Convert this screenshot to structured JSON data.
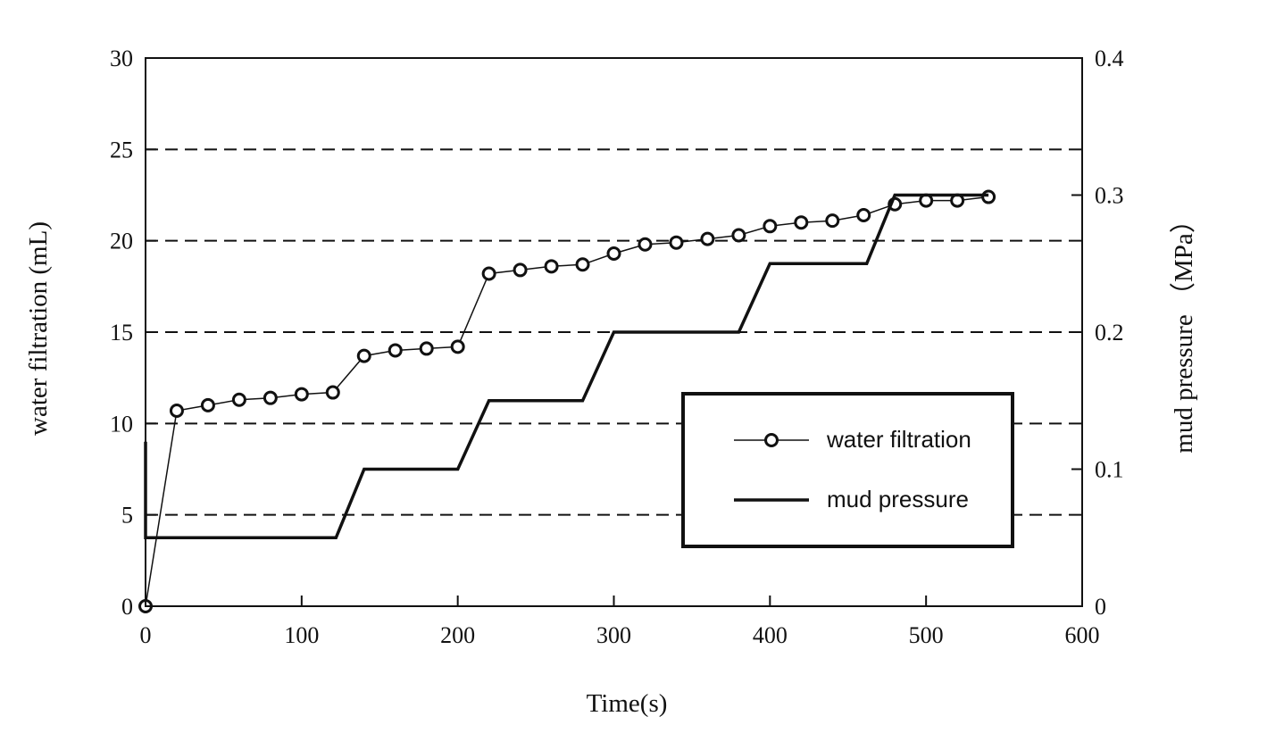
{
  "chart_data": {
    "type": "line",
    "title": "",
    "xlabel": "Time(s)",
    "ylabel": "water filtration (mL)",
    "y2label": "mud pressure （MPa）",
    "xlim": [
      0,
      600
    ],
    "ylim": [
      0,
      30
    ],
    "y2lim": [
      0,
      0.4
    ],
    "xticks": [
      0,
      100,
      200,
      300,
      400,
      500,
      600
    ],
    "yticks": [
      0,
      5,
      10,
      15,
      20,
      25,
      30
    ],
    "y2ticks": [
      0,
      0.1,
      0.2,
      0.3,
      0.4
    ],
    "xtick_labels": [
      "0",
      "100",
      "200",
      "300",
      "400",
      "500",
      "600"
    ],
    "ytick_labels": [
      "0",
      "5",
      "10",
      "15",
      "20",
      "25",
      "30"
    ],
    "y2tick_labels": [
      "0",
      "0.1",
      "0.2",
      "0.3",
      "0.4"
    ],
    "grid": "horizontal dashed lines",
    "legend_position": "right",
    "series": [
      {
        "name": "water filtration",
        "axis": "left",
        "marker": "open-circle",
        "color": "#111111",
        "x": [
          0,
          20,
          40,
          60,
          80,
          100,
          120,
          140,
          160,
          180,
          200,
          220,
          240,
          260,
          280,
          300,
          320,
          340,
          360,
          380,
          400,
          420,
          440,
          460,
          480,
          500,
          520,
          540
        ],
        "y": [
          0,
          10.7,
          11.0,
          11.3,
          11.4,
          11.6,
          11.7,
          13.7,
          14.0,
          14.1,
          14.2,
          18.2,
          18.4,
          18.6,
          18.7,
          19.3,
          19.8,
          19.9,
          20.1,
          20.3,
          20.8,
          21.0,
          21.1,
          21.4,
          22.0,
          22.2,
          22.2,
          22.4
        ]
      },
      {
        "name": "mud pressure",
        "axis": "right",
        "marker": "none",
        "color": "#111111",
        "x": [
          0,
          0,
          122,
          140,
          200,
          220,
          280,
          300,
          380,
          400,
          462,
          480,
          540
        ],
        "y": [
          0.12,
          0.05,
          0.05,
          0.1,
          0.1,
          0.15,
          0.15,
          0.2,
          0.2,
          0.25,
          0.25,
          0.3,
          0.3
        ]
      }
    ]
  }
}
